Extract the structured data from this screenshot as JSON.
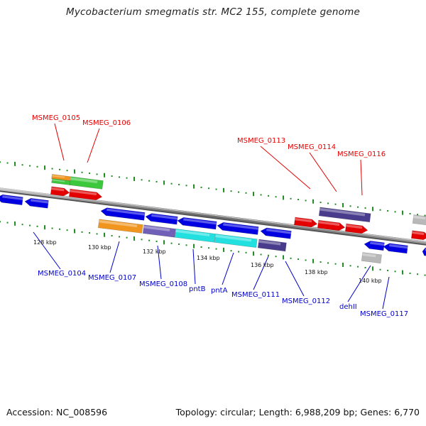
{
  "title": "Mycobacterium smegmatis str. MC2 155, complete genome",
  "footer": {
    "accession": "Accession: NC_008596",
    "summary": "Topology: circular; Length: 6,988,209 bp; Genes: 6,770"
  },
  "colors": {
    "backbone": "#8a8a8a",
    "tick": "#1f8a1f",
    "label_forward": "#e60000",
    "label_reverse": "#0000cc",
    "gene_forward": "#e30000",
    "gene_reverse": "#0000e0",
    "orange": "#f0961e",
    "green": "#3cc83c",
    "purple": "#7060b8",
    "cyan": "#22e0e0",
    "dark_purple": "#4a3c8c",
    "gray": "#b8b8b8"
  },
  "scale_labels": [
    "128 kbp",
    "130 kbp",
    "132 kbp",
    "134 kbp",
    "136 kbp",
    "138 kbp",
    "140 kbp"
  ],
  "forward_labels": [
    "MSMEG_0105",
    "MSMEG_0106",
    "MSMEG_0113",
    "MSMEG_0114",
    "MSMEG_0116"
  ],
  "reverse_labels": [
    "MSMEG_0104",
    "MSMEG_0107",
    "MSMEG_0108",
    "pntB",
    "pntA",
    "MSMEG_0111",
    "MSMEG_0112",
    "dehII",
    "MSMEG_0117"
  ]
}
